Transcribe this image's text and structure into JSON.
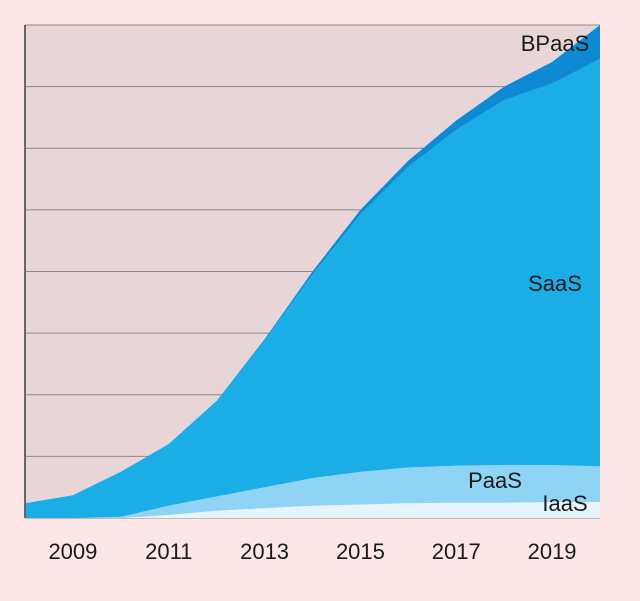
{
  "chart_data": {
    "type": "stacked-area",
    "x": [
      2008,
      2009,
      2010,
      2011,
      2012,
      2013,
      2014,
      2015,
      2016,
      2017,
      2018,
      2019,
      2020
    ],
    "xlim": [
      2008,
      2020
    ],
    "xticks": [
      2009,
      2011,
      2013,
      2015,
      2017,
      2019
    ],
    "ylim": [
      0,
      8
    ],
    "yticks": [
      0,
      1,
      2,
      3,
      4,
      5,
      6,
      7,
      8
    ],
    "grid": true,
    "series": [
      {
        "name": "IaaS",
        "color": "#e6f5fc",
        "values": [
          0,
          0,
          0,
          0.05,
          0.12,
          0.16,
          0.2,
          0.22,
          0.24,
          0.25,
          0.25,
          0.26,
          0.26
        ]
      },
      {
        "name": "PaaS",
        "color": "#8fd4f4",
        "values": [
          0,
          0,
          0.02,
          0.15,
          0.23,
          0.34,
          0.45,
          0.53,
          0.58,
          0.6,
          0.61,
          0.6,
          0.58
        ]
      },
      {
        "name": "SaaS",
        "color": "#1badE6",
        "values": [
          0.24,
          0.37,
          0.73,
          1.0,
          1.55,
          2.38,
          3.3,
          4.18,
          4.88,
          5.45,
          5.92,
          6.19,
          6.61
        ]
      },
      {
        "name": "BPaaS",
        "color": "#0e8ad4",
        "values": [
          0,
          0,
          0,
          0,
          0,
          0.02,
          0.05,
          0.07,
          0.1,
          0.15,
          0.22,
          0.35,
          0.55
        ]
      }
    ]
  }
}
